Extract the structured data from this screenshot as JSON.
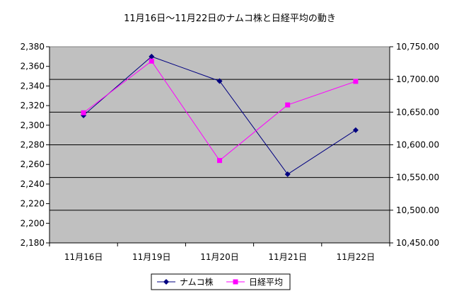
{
  "chart_data": {
    "type": "line",
    "title": "11月16日〜11月22日のナムコ株と日経平均の動き",
    "categories": [
      "11月16日",
      "11月19日",
      "11月20日",
      "11月21日",
      "11月22日"
    ],
    "series": [
      {
        "name": "ナムコ株",
        "axis": "left",
        "color": "#000080",
        "marker": "diamond",
        "values": [
          2310,
          2370,
          2345,
          2250,
          2295
        ]
      },
      {
        "name": "日経平均",
        "axis": "right",
        "color": "#ff00ff",
        "marker": "square",
        "values": [
          10649,
          10728,
          10576,
          10661,
          10697
        ]
      }
    ],
    "y_left": {
      "min": 2180,
      "max": 2380,
      "step": 20,
      "ticks": [
        "2,180",
        "2,200",
        "2,220",
        "2,240",
        "2,260",
        "2,280",
        "2,300",
        "2,320",
        "2,340",
        "2,360",
        "2,380"
      ]
    },
    "y_right": {
      "min": 10450,
      "max": 10750,
      "step": 50,
      "ticks": [
        "10,450.00",
        "10,500.00",
        "10,550.00",
        "10,600.00",
        "10,650.00",
        "10,700.00",
        "10,750.00"
      ]
    },
    "plot_background": "#c0c0c0",
    "grid": "horizontal",
    "legend_position": "bottom"
  }
}
